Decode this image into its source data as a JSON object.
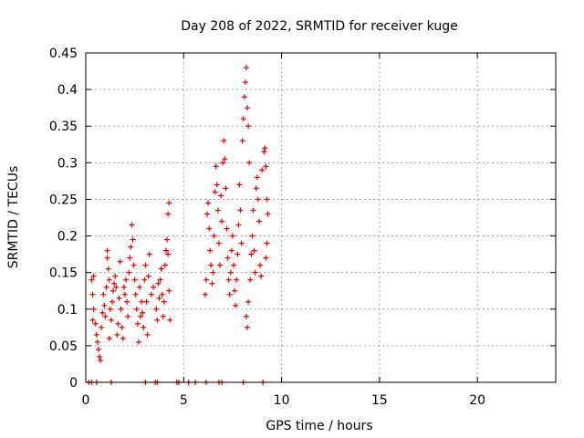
{
  "chart_data": {
    "type": "scatter",
    "title": "Day 208 of 2022, SRMTID for receiver kuge",
    "xlabel": "GPS time / hours",
    "ylabel": "SRMTID / TECUs",
    "xlim": [
      0,
      24
    ],
    "ylim": [
      0,
      0.45
    ],
    "xticks": [
      0,
      5,
      10,
      15,
      20
    ],
    "yticks": [
      0,
      0.05,
      0.1,
      0.15,
      0.2,
      0.25,
      0.3,
      0.35,
      0.4,
      0.45
    ],
    "grid": true,
    "marker": "+",
    "color": "#e00000",
    "series": [
      {
        "name": "SRMTID",
        "points": [
          [
            0.15,
            0
          ],
          [
            0.3,
            0
          ],
          [
            0.55,
            0
          ],
          [
            1.3,
            0
          ],
          [
            3.05,
            0
          ],
          [
            3.55,
            0
          ],
          [
            3.65,
            0
          ],
          [
            4.65,
            0
          ],
          [
            4.75,
            0
          ],
          [
            5.25,
            0
          ],
          [
            5.6,
            0
          ],
          [
            6.15,
            0
          ],
          [
            6.8,
            0
          ],
          [
            6.95,
            0
          ],
          [
            8.05,
            0
          ],
          [
            9.05,
            0
          ],
          [
            0.3,
            0.14
          ],
          [
            0.35,
            0.12
          ],
          [
            0.4,
            0.1
          ],
          [
            0.35,
            0.085
          ],
          [
            0.4,
            0.145
          ],
          [
            0.5,
            0.08
          ],
          [
            0.55,
            0.065
          ],
          [
            0.6,
            0.055
          ],
          [
            0.65,
            0.045
          ],
          [
            0.7,
            0.035
          ],
          [
            0.75,
            0.03
          ],
          [
            0.8,
            0.075
          ],
          [
            0.85,
            0.095
          ],
          [
            0.9,
            0.12
          ],
          [
            0.95,
            0.105
          ],
          [
            1.0,
            0.09
          ],
          [
            1.05,
            0.13
          ],
          [
            1.1,
            0.17
          ],
          [
            1.1,
            0.18
          ],
          [
            1.15,
            0.155
          ],
          [
            1.2,
            0.14
          ],
          [
            1.2,
            0.06
          ],
          [
            1.25,
            0.1
          ],
          [
            1.3,
            0.085
          ],
          [
            1.35,
            0.11
          ],
          [
            1.4,
            0.125
          ],
          [
            1.45,
            0.135
          ],
          [
            1.5,
            0.145
          ],
          [
            1.55,
            0.13
          ],
          [
            1.6,
            0.065
          ],
          [
            1.65,
            0.08
          ],
          [
            1.7,
            0.115
          ],
          [
            1.75,
            0.165
          ],
          [
            1.8,
            0.1
          ],
          [
            1.85,
            0.075
          ],
          [
            1.9,
            0.06
          ],
          [
            1.95,
            0.13
          ],
          [
            2.0,
            0.12
          ],
          [
            2.05,
            0.14
          ],
          [
            2.1,
            0.11
          ],
          [
            2.15,
            0.09
          ],
          [
            2.2,
            0.15
          ],
          [
            2.25,
            0.17
          ],
          [
            2.3,
            0.185
          ],
          [
            2.35,
            0.215
          ],
          [
            2.4,
            0.195
          ],
          [
            2.45,
            0.16
          ],
          [
            2.5,
            0.14
          ],
          [
            2.55,
            0.12
          ],
          [
            2.6,
            0.1
          ],
          [
            2.65,
            0.08
          ],
          [
            2.7,
            0.055
          ],
          [
            2.75,
            0.13
          ],
          [
            2.8,
            0.09
          ],
          [
            2.85,
            0.11
          ],
          [
            2.9,
            0.095
          ],
          [
            2.95,
            0.075
          ],
          [
            3.0,
            0.14
          ],
          [
            3.05,
            0.16
          ],
          [
            3.1,
            0.11
          ],
          [
            3.15,
            0.065
          ],
          [
            3.2,
            0.145
          ],
          [
            3.25,
            0.175
          ],
          [
            3.35,
            0.12
          ],
          [
            3.45,
            0.13
          ],
          [
            3.6,
            0.1
          ],
          [
            3.65,
            0.085
          ],
          [
            3.7,
            0.135
          ],
          [
            3.75,
            0.115
          ],
          [
            3.8,
            0.14
          ],
          [
            3.85,
            0.155
          ],
          [
            3.9,
            0.12
          ],
          [
            3.95,
            0.09
          ],
          [
            4.0,
            0.11
          ],
          [
            4.05,
            0.16
          ],
          [
            4.1,
            0.18
          ],
          [
            4.15,
            0.195
          ],
          [
            4.2,
            0.23
          ],
          [
            4.25,
            0.245
          ],
          [
            4.3,
            0.085
          ],
          [
            4.25,
            0.125
          ],
          [
            4.2,
            0.175
          ],
          [
            6.1,
            0.12
          ],
          [
            6.15,
            0.14
          ],
          [
            6.2,
            0.23
          ],
          [
            6.25,
            0.245
          ],
          [
            6.3,
            0.21
          ],
          [
            6.35,
            0.18
          ],
          [
            6.4,
            0.16
          ],
          [
            6.45,
            0.135
          ],
          [
            6.5,
            0.15
          ],
          [
            6.55,
            0.2
          ],
          [
            6.6,
            0.26
          ],
          [
            6.65,
            0.295
          ],
          [
            6.7,
            0.27
          ],
          [
            6.75,
            0.235
          ],
          [
            6.8,
            0.19
          ],
          [
            6.85,
            0.16
          ],
          [
            6.9,
            0.255
          ],
          [
            6.95,
            0.22
          ],
          [
            7.0,
            0.3
          ],
          [
            7.05,
            0.33
          ],
          [
            7.1,
            0.305
          ],
          [
            7.15,
            0.265
          ],
          [
            7.2,
            0.21
          ],
          [
            7.25,
            0.17
          ],
          [
            7.3,
            0.14
          ],
          [
            7.35,
            0.12
          ],
          [
            7.4,
            0.15
          ],
          [
            7.45,
            0.18
          ],
          [
            7.5,
            0.2
          ],
          [
            7.55,
            0.16
          ],
          [
            7.6,
            0.125
          ],
          [
            7.65,
            0.105
          ],
          [
            7.7,
            0.14
          ],
          [
            7.75,
            0.175
          ],
          [
            7.8,
            0.215
          ],
          [
            7.85,
            0.27
          ],
          [
            7.9,
            0.235
          ],
          [
            7.95,
            0.19
          ],
          [
            8.0,
            0.33
          ],
          [
            8.05,
            0.36
          ],
          [
            8.1,
            0.39
          ],
          [
            8.15,
            0.41
          ],
          [
            8.2,
            0.43
          ],
          [
            8.25,
            0.375
          ],
          [
            8.3,
            0.35
          ],
          [
            8.35,
            0.3
          ],
          [
            8.2,
            0.09
          ],
          [
            8.25,
            0.075
          ],
          [
            8.3,
            0.11
          ],
          [
            8.4,
            0.14
          ],
          [
            8.45,
            0.175
          ],
          [
            8.5,
            0.2
          ],
          [
            8.55,
            0.235
          ],
          [
            8.6,
            0.18
          ],
          [
            8.65,
            0.15
          ],
          [
            8.7,
            0.265
          ],
          [
            8.75,
            0.28
          ],
          [
            8.8,
            0.25
          ],
          [
            8.85,
            0.22
          ],
          [
            8.9,
            0.16
          ],
          [
            8.95,
            0.145
          ],
          [
            9.0,
            0.29
          ],
          [
            9.1,
            0.315
          ],
          [
            9.15,
            0.32
          ],
          [
            9.2,
            0.295
          ],
          [
            9.25,
            0.25
          ],
          [
            9.3,
            0.23
          ],
          [
            9.25,
            0.19
          ],
          [
            9.2,
            0.17
          ]
        ]
      }
    ]
  }
}
